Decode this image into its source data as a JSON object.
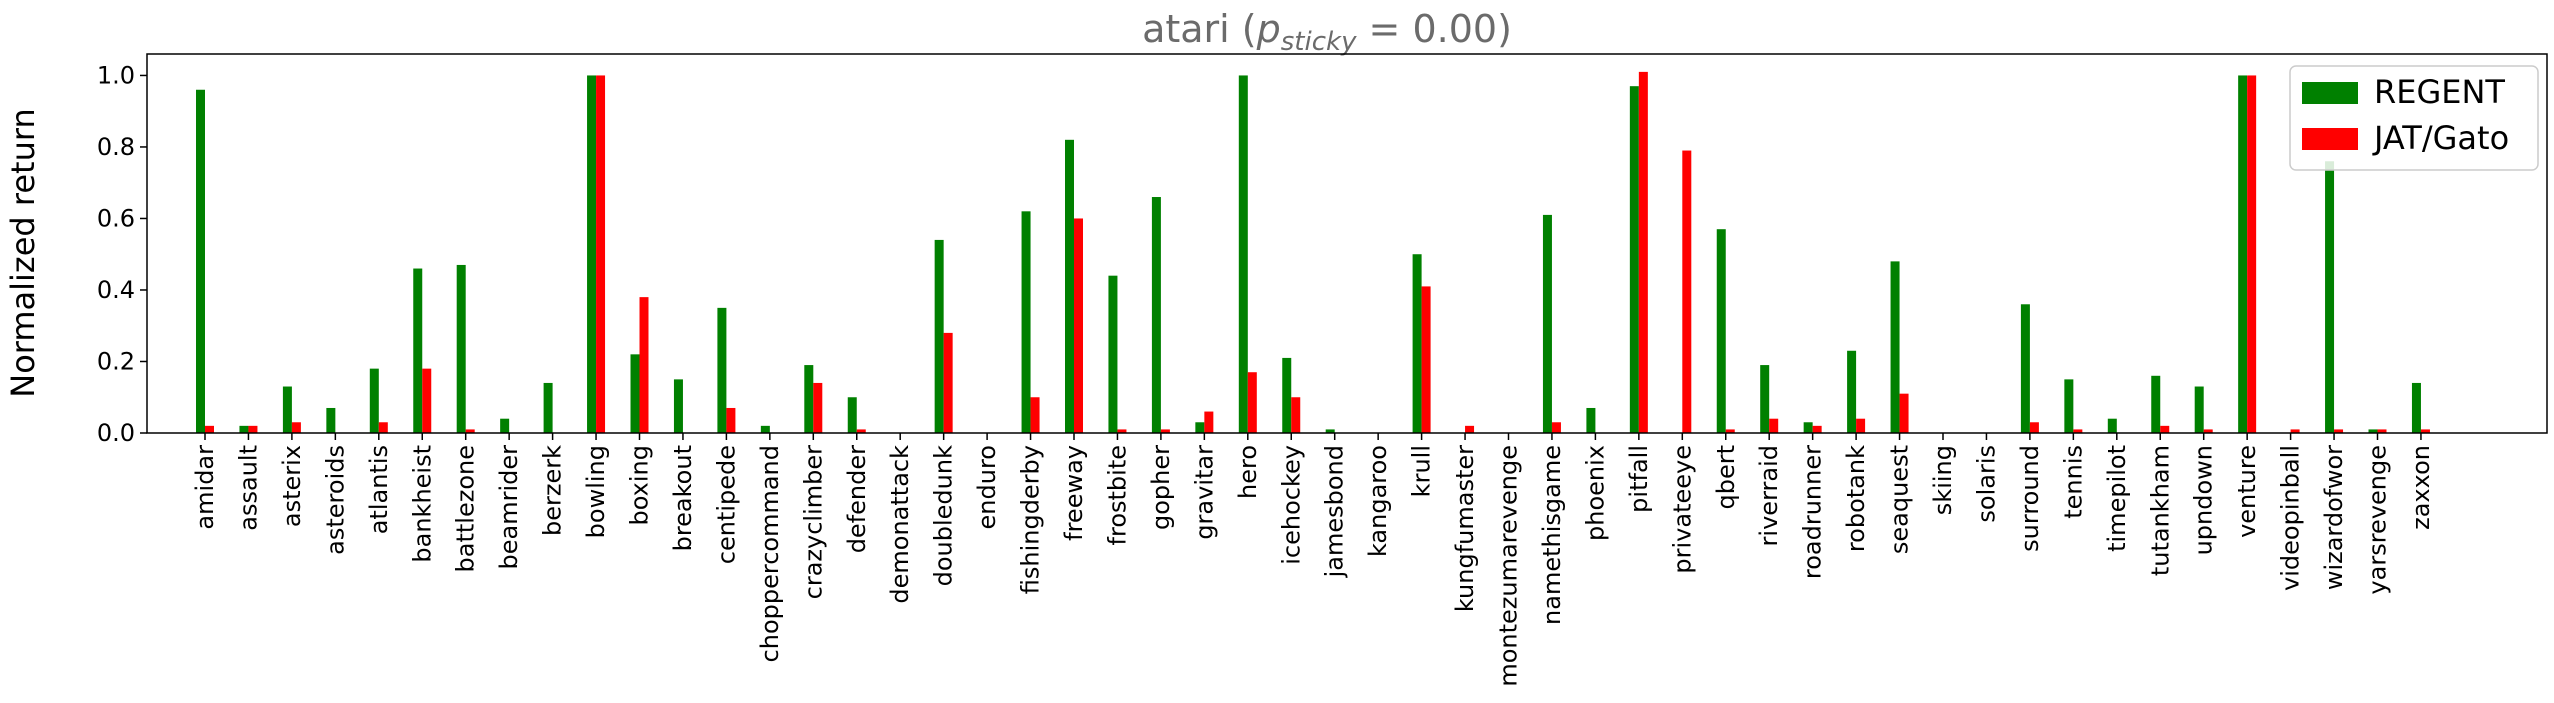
{
  "chart_data": {
    "type": "bar",
    "title": "atari (p_sticky = 0.00)",
    "title_parts": {
      "prefix": "atari (",
      "var": "p",
      "subscript": "sticky",
      "suffix": " = 0.00)"
    },
    "xlabel": "",
    "ylabel": "Normalized return",
    "ylim": [
      0,
      1.06
    ],
    "yticks": [
      "0.0",
      "0.2",
      "0.4",
      "0.6",
      "0.8",
      "1.0"
    ],
    "grid": false,
    "legend_position": "top-right",
    "categories": [
      "amidar",
      "assault",
      "asterix",
      "asteroids",
      "atlantis",
      "bankheist",
      "battlezone",
      "beamrider",
      "berzerk",
      "bowling",
      "boxing",
      "breakout",
      "centipede",
      "choppercommand",
      "crazyclimber",
      "defender",
      "demonattack",
      "doubledunk",
      "enduro",
      "fishingderby",
      "freeway",
      "frostbite",
      "gopher",
      "gravitar",
      "hero",
      "icehockey",
      "jamesbond",
      "kangaroo",
      "krull",
      "kungfumaster",
      "montezumarevenge",
      "namethisgame",
      "phoenix",
      "pitfall",
      "privateeye",
      "qbert",
      "riverraid",
      "roadrunner",
      "robotank",
      "seaquest",
      "skiing",
      "solaris",
      "surround",
      "tennis",
      "timepilot",
      "tutankham",
      "upndown",
      "venture",
      "videopinball",
      "wizardofwor",
      "yarsrevenge",
      "zaxxon"
    ],
    "series": [
      {
        "name": "REGENT",
        "color": "#008000",
        "values": [
          0.96,
          0.02,
          0.13,
          0.07,
          0.18,
          0.46,
          0.47,
          0.04,
          0.14,
          1.0,
          0.22,
          0.15,
          0.35,
          0.02,
          0.19,
          0.1,
          0.0,
          0.54,
          0.0,
          0.62,
          0.82,
          0.44,
          0.66,
          0.03,
          1.0,
          0.21,
          0.01,
          0.0,
          0.5,
          0.0,
          0.0,
          0.61,
          0.07,
          0.97,
          0.0,
          0.57,
          0.19,
          0.03,
          0.23,
          0.48,
          0.0,
          0.0,
          0.36,
          0.15,
          0.04,
          0.16,
          0.13,
          1.0,
          0.0,
          0.76,
          0.01,
          0.14
        ]
      },
      {
        "name": "JAT/Gato",
        "color": "#ff0000",
        "values": [
          0.02,
          0.02,
          0.03,
          0.0,
          0.03,
          0.18,
          0.01,
          0.0,
          0.0,
          1.0,
          0.38,
          0.0,
          0.07,
          0.0,
          0.14,
          0.01,
          0.0,
          0.28,
          0.0,
          0.1,
          0.6,
          0.01,
          0.01,
          0.06,
          0.17,
          0.1,
          0.0,
          0.0,
          0.41,
          0.02,
          0.0,
          0.03,
          0.0,
          1.01,
          0.79,
          0.01,
          0.04,
          0.02,
          0.04,
          0.11,
          0.0,
          0.0,
          0.03,
          0.01,
          0.0,
          0.02,
          0.01,
          1.0,
          0.01,
          0.01,
          0.01,
          0.01
        ]
      }
    ]
  }
}
